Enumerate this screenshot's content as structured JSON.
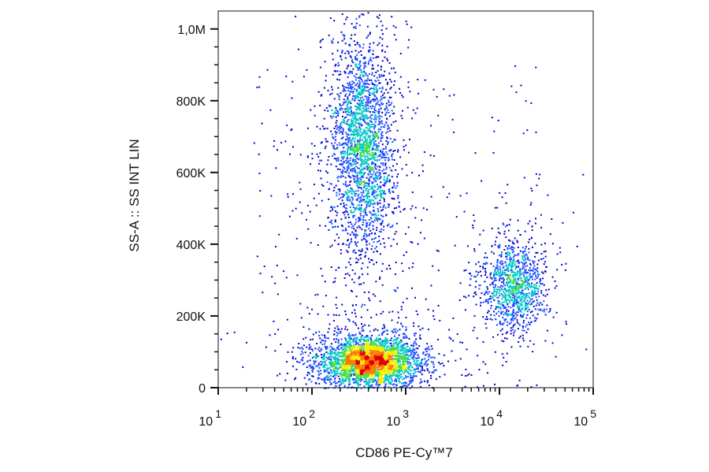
{
  "chart_data": {
    "type": "scatter",
    "subtype": "flow-cytometry-density-dot-plot",
    "title": "",
    "xlabel": "CD86 PE-Cy™7",
    "ylabel": "SS-A :: SS INT LIN",
    "x_scale": "log",
    "y_scale": "linear",
    "xlim": [
      10,
      100000
    ],
    "ylim": [
      0,
      1050000
    ],
    "x_ticks": [
      {
        "value": 10,
        "base": "10",
        "exp": "1"
      },
      {
        "value": 100,
        "base": "10",
        "exp": "2"
      },
      {
        "value": 1000,
        "base": "10",
        "exp": "3"
      },
      {
        "value": 10000,
        "base": "10",
        "exp": "4"
      },
      {
        "value": 100000,
        "base": "10",
        "exp": "5"
      }
    ],
    "y_ticks": [
      {
        "value": 0,
        "label": "0"
      },
      {
        "value": 200000,
        "label": "200K"
      },
      {
        "value": 400000,
        "label": "400K"
      },
      {
        "value": 600000,
        "label": "600K"
      },
      {
        "value": 800000,
        "label": "800K"
      },
      {
        "value": 1000000,
        "label": "1,0M"
      }
    ],
    "color_scale": [
      "#0000cc",
      "#1a4cff",
      "#00c8c8",
      "#44dd44",
      "#eeee00",
      "#ff7700",
      "#dd0000"
    ],
    "series": [
      {
        "population": "low-SSC cluster (CD86-)",
        "x_center": 400,
        "y_center": 75000,
        "x_spread_decades": 0.26,
        "y_spread": 35000,
        "peak_density": "high",
        "events": 3200
      },
      {
        "population": "high-SSC cluster (CD86-)",
        "x_center": 350,
        "y_center": 680000,
        "x_spread_decades": 0.17,
        "y_spread": 150000,
        "peak_density": "medium",
        "events": 2400
      },
      {
        "population": "mid-SSC cluster (CD86+)",
        "x_center": 14000,
        "y_center": 290000,
        "x_spread_decades": 0.17,
        "y_spread": 65000,
        "peak_density": "medium",
        "events": 1100
      }
    ],
    "grid": false,
    "legend": "none"
  }
}
